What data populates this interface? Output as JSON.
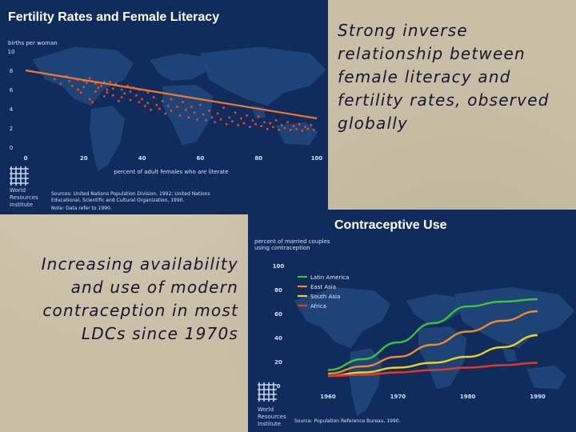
{
  "captions": {
    "top": "Strong inverse relationship between female literacy and fertility rates, observed globally",
    "bottom": "Increasing availability and use of modern contraception in most LDCs since 1970s"
  },
  "colors": {
    "slide_bg": "#c9bfa6",
    "panel_bg": "#102c5c",
    "land": "#20467a",
    "dots": "#e04a2a",
    "trend_line": "#f07830",
    "latin_america": "#3fc23c",
    "east_asia": "#f08a2a",
    "south_asia": "#f0d020",
    "africa": "#e03a2a"
  },
  "logo_text": [
    "World",
    "Resources",
    "Institute"
  ],
  "chart_data": [
    {
      "type": "scatter",
      "title": "Fertility Rates and Female Literacy",
      "ylabel": "births per woman",
      "xlabel": "percent of adult females who are literate",
      "xlim": [
        0,
        100
      ],
      "ylim": [
        0,
        10
      ],
      "xticks": [
        0,
        20,
        40,
        60,
        80,
        100
      ],
      "yticks": [
        0,
        2,
        4,
        6,
        8,
        10
      ],
      "grid": false,
      "source": "Sources: United Nations Population Division, 1992; United Nations Educational, Scientific and Cultural Organization, 1990.",
      "note": "Note: Data refer to 1990.",
      "trend_line": {
        "x": [
          0,
          100
        ],
        "y": [
          8.0,
          3.0
        ]
      },
      "points": [
        [
          10,
          7.1
        ],
        [
          12,
          6.6
        ],
        [
          14,
          7.4
        ],
        [
          15,
          6.9
        ],
        [
          16,
          6.4
        ],
        [
          18,
          7.0
        ],
        [
          18,
          6.0
        ],
        [
          19,
          5.7
        ],
        [
          20,
          6.9
        ],
        [
          20,
          6.3
        ],
        [
          21,
          6.7
        ],
        [
          22,
          7.2
        ],
        [
          22,
          5.0
        ],
        [
          23,
          4.7
        ],
        [
          24,
          6.6
        ],
        [
          24,
          5.8
        ],
        [
          25,
          6.2
        ],
        [
          26,
          6.4
        ],
        [
          27,
          5.3
        ],
        [
          27,
          6.8
        ],
        [
          28,
          6.0
        ],
        [
          28,
          5.7
        ],
        [
          29,
          6.8
        ],
        [
          30,
          6.1
        ],
        [
          30,
          5.4
        ],
        [
          31,
          6.6
        ],
        [
          32,
          4.8
        ],
        [
          33,
          6.0
        ],
        [
          33,
          5.2
        ],
        [
          34,
          5.6
        ],
        [
          35,
          6.4
        ],
        [
          36,
          4.9
        ],
        [
          36,
          5.8
        ],
        [
          37,
          6.2
        ],
        [
          38,
          5.4
        ],
        [
          39,
          4.7
        ],
        [
          39,
          6.0
        ],
        [
          40,
          5.0
        ],
        [
          41,
          4.3
        ],
        [
          42,
          5.7
        ],
        [
          42,
          4.6
        ],
        [
          43,
          3.9
        ],
        [
          44,
          5.2
        ],
        [
          45,
          4.4
        ],
        [
          46,
          4.0
        ],
        [
          47,
          4.8
        ],
        [
          48,
          3.5
        ],
        [
          49,
          4.3
        ],
        [
          50,
          3.8
        ],
        [
          50,
          5.0
        ],
        [
          52,
          4.2
        ],
        [
          53,
          3.3
        ],
        [
          54,
          4.7
        ],
        [
          55,
          3.9
        ],
        [
          56,
          3.1
        ],
        [
          57,
          4.2
        ],
        [
          58,
          3.6
        ],
        [
          59,
          2.9
        ],
        [
          60,
          4.4
        ],
        [
          61,
          3.4
        ],
        [
          62,
          2.8
        ],
        [
          63,
          3.8
        ],
        [
          64,
          3.1
        ],
        [
          65,
          2.6
        ],
        [
          66,
          3.5
        ],
        [
          67,
          2.9
        ],
        [
          68,
          4.1
        ],
        [
          69,
          2.4
        ],
        [
          70,
          3.1
        ],
        [
          71,
          2.7
        ],
        [
          72,
          3.6
        ],
        [
          73,
          2.3
        ],
        [
          74,
          3.0
        ],
        [
          75,
          2.5
        ],
        [
          76,
          3.3
        ],
        [
          77,
          2.1
        ],
        [
          78,
          2.8
        ],
        [
          79,
          2.4
        ],
        [
          80,
          3.2
        ],
        [
          81,
          2.2
        ],
        [
          82,
          2.6
        ],
        [
          83,
          1.9
        ],
        [
          84,
          2.5
        ],
        [
          85,
          2.1
        ],
        [
          86,
          2.8
        ],
        [
          87,
          1.8
        ],
        [
          88,
          2.3
        ],
        [
          89,
          2.0
        ],
        [
          90,
          2.6
        ],
        [
          91,
          1.8
        ],
        [
          92,
          2.2
        ],
        [
          93,
          1.9
        ],
        [
          94,
          2.4
        ],
        [
          95,
          1.7
        ],
        [
          96,
          2.1
        ],
        [
          97,
          1.9
        ],
        [
          98,
          2.3
        ],
        [
          99,
          1.8
        ]
      ]
    },
    {
      "type": "line",
      "title": "Contraceptive Use",
      "ylabel": "percent of married couples using contraception",
      "xlim": [
        1960,
        1990
      ],
      "ylim": [
        0,
        100
      ],
      "xticks": [
        1960,
        1970,
        1980,
        1990
      ],
      "yticks": [
        0,
        20,
        40,
        60,
        80,
        100
      ],
      "grid": false,
      "legend_position": "top-left",
      "source": "Source: Population Reference Bureau, 1990.",
      "x": [
        1960,
        1965,
        1970,
        1975,
        1980,
        1985,
        1990
      ],
      "series": [
        {
          "name": "Latin America",
          "values": [
            13,
            22,
            36,
            52,
            66,
            70,
            72
          ]
        },
        {
          "name": "East Asia",
          "values": [
            10,
            16,
            24,
            34,
            45,
            54,
            62
          ]
        },
        {
          "name": "South Asia",
          "values": [
            8,
            11,
            15,
            19,
            24,
            32,
            42
          ]
        },
        {
          "name": "Africa",
          "values": [
            8,
            9,
            11,
            13,
            15,
            17,
            19
          ]
        }
      ]
    }
  ]
}
